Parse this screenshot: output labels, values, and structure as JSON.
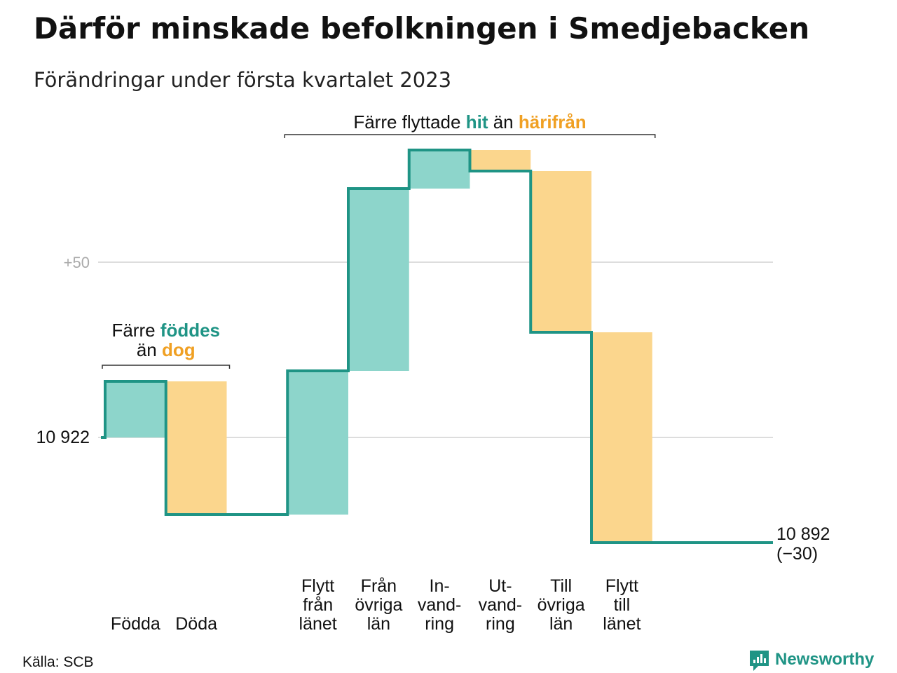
{
  "chart_data": {
    "type": "waterfall",
    "title": "Därför minskade befolkningen i Smedjebacken",
    "subtitle": "Förändringar under första kvartalet 2023",
    "start": {
      "value": 10922,
      "label": "10 922"
    },
    "end": {
      "value": 10892,
      "label": "10 892",
      "change_label": "(−30)"
    },
    "y_ticks": [
      {
        "value": 10922,
        "label": ""
      },
      {
        "value": 10972,
        "label": "+50"
      }
    ],
    "steps": [
      {
        "label_lines": [
          "Födda"
        ],
        "change": 16,
        "kind": "in"
      },
      {
        "label_lines": [
          "Döda"
        ],
        "change": -38,
        "kind": "out"
      },
      {
        "label_lines": [
          "Flytt",
          "från",
          "länet"
        ],
        "change": 41,
        "kind": "in"
      },
      {
        "label_lines": [
          "Från",
          "övriga",
          "län"
        ],
        "change": 52,
        "kind": "in"
      },
      {
        "label_lines": [
          "In-",
          "vand-",
          "ring"
        ],
        "change": 11,
        "kind": "in"
      },
      {
        "label_lines": [
          "Ut-",
          "vand-",
          "ring"
        ],
        "change": -6,
        "kind": "out"
      },
      {
        "label_lines": [
          "Till",
          "övriga",
          "län"
        ],
        "change": -46,
        "kind": "out"
      },
      {
        "label_lines": [
          "Flytt",
          "till",
          "länet"
        ],
        "change": -60,
        "kind": "out"
      }
    ],
    "annotations": [
      {
        "parts": [
          {
            "text": "Färre ",
            "style": "plain"
          },
          {
            "text": "föddes",
            "style": "teal"
          }
        ],
        "parts2": [
          {
            "text": "än ",
            "style": "plain"
          },
          {
            "text": "dog",
            "style": "orange"
          }
        ],
        "span": [
          0,
          1
        ]
      },
      {
        "parts": [
          {
            "text": "Färre flyttade ",
            "style": "plain"
          },
          {
            "text": "hit",
            "style": "teal"
          },
          {
            "text": " än ",
            "style": "plain"
          },
          {
            "text": "härifrån",
            "style": "orange"
          }
        ],
        "parts2": [],
        "span": [
          2,
          7
        ]
      }
    ],
    "colors": {
      "in": "#8dd5cb",
      "out": "#fbd68d",
      "line": "#1f9485",
      "grid": "#dddddd",
      "teal_text": "#1f9485",
      "orange_text": "#f0a023"
    },
    "grid": true
  },
  "footer": {
    "source": "Källa: SCB",
    "brand": "Newsworthy"
  }
}
